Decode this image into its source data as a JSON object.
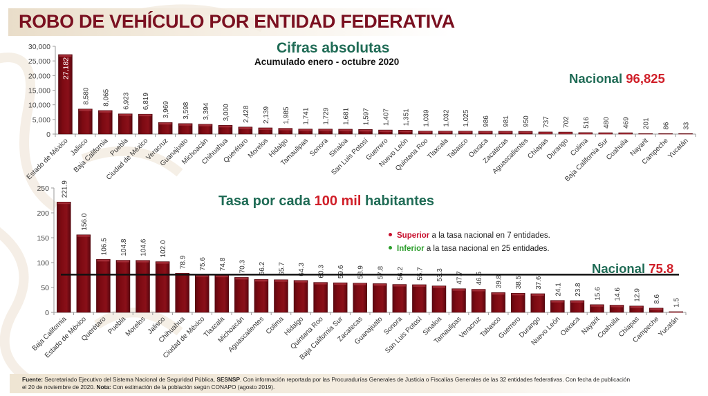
{
  "header": {
    "title": "ROBO DE VEHÍCULO POR ENTIDAD FEDERATIVA"
  },
  "panel1": {
    "subtitle": "Cifras absolutas",
    "period": "Acumulado enero - octubre 2020",
    "national_label": "Nacional",
    "national_value": "96,825"
  },
  "panel2": {
    "subtitle_pre": "Tasa por cada",
    "subtitle_highlight": "100 mil",
    "subtitle_post": "habitantes",
    "national_label": "Nacional",
    "national_value": "75.8",
    "legend": [
      {
        "bold": "Superior",
        "text": "a la tasa nacional en 7 entidades.",
        "color": "#c8102e"
      },
      {
        "bold": "Inferior",
        "text": "a la tasa nacional en 25 entidades.",
        "color": "#2a9d2a"
      }
    ]
  },
  "footer": {
    "source_label": "Fuente:",
    "source_text": "Secretariado Ejecutivo del Sistema Nacional de Seguridad Pública,",
    "source_org": "SESNSP",
    "source_text2": ". Con información reportada por las Procuradurías Generales de Justicia o Fiscalías Generales de las 32 entidades federativas. Con fecha de publicación el 20 de noviembre de 2020.",
    "note_label": "Nota:",
    "note_text": "Con estimación de la población según CONAPO (agosto 2019)."
  },
  "colors": {
    "bar": "#7d0a12",
    "title": "#7a1020",
    "accent_green": "#1f6b55",
    "accent_red": "#d01e28"
  },
  "chart_data": [
    {
      "type": "bar",
      "title": "Cifras absolutas",
      "subtitle": "Acumulado enero - octubre 2020",
      "xlabel": "",
      "ylabel": "",
      "ylim": [
        0,
        30000
      ],
      "yticks": [
        "0",
        "5,000",
        "10,000",
        "15,000",
        "20,000",
        "25,000",
        "30,000"
      ],
      "ytick_values": [
        0,
        5000,
        10000,
        15000,
        20000,
        25000,
        30000
      ],
      "categories": [
        "Estado de México",
        "Jalisco",
        "Baja California",
        "Puebla",
        "Ciudad de México",
        "Veracruz",
        "Guanajuato",
        "Michoacán",
        "Chihuahua",
        "Querétaro",
        "Morelos",
        "Hidalgo",
        "Tamaulipas",
        "Sonora",
        "Sinaloa",
        "San Luis Potosí",
        "Guerrero",
        "Nuevo León",
        "Quintana Roo",
        "Tlaxcala",
        "Tabasco",
        "Oaxaca",
        "Zacatecas",
        "Aguascalientes",
        "Chiapas",
        "Durango",
        "Colima",
        "Baja California Sur",
        "Coahuila",
        "Nayarit",
        "Campeche",
        "Yucatán"
      ],
      "values": [
        27182,
        8580,
        8065,
        6923,
        6819,
        3969,
        3598,
        3394,
        3000,
        2428,
        2139,
        1985,
        1741,
        1729,
        1681,
        1597,
        1407,
        1351,
        1039,
        1032,
        1025,
        986,
        981,
        950,
        737,
        702,
        516,
        480,
        469,
        201,
        86,
        33
      ],
      "labels": [
        "27,182",
        "8,580",
        "8,065",
        "6,923",
        "6,819",
        "3,969",
        "3,598",
        "3,394",
        "3,000",
        "2,428",
        "2,139",
        "1,985",
        "1,741",
        "1,729",
        "1,681",
        "1,597",
        "1,407",
        "1,351",
        "1,039",
        "1,032",
        "1,025",
        "986",
        "981",
        "950",
        "737",
        "702",
        "516",
        "480",
        "469",
        "201",
        "86",
        "33"
      ],
      "annotation": "Nacional 96,825",
      "grid": false
    },
    {
      "type": "bar",
      "title": "Tasa por cada 100 mil habitantes",
      "xlabel": "",
      "ylabel": "",
      "ylim": [
        0,
        250
      ],
      "yticks": [
        "0",
        "50",
        "100",
        "150",
        "200",
        "250"
      ],
      "ytick_values": [
        0,
        50,
        100,
        150,
        200,
        250
      ],
      "categories": [
        "Baja California",
        "Estado de México",
        "Querétaro",
        "Puebla",
        "Morelos",
        "Jalisco",
        "Chihuahua",
        "Ciudad de México",
        "Tlaxcala",
        "Michoacán",
        "Aguascalientes",
        "Colima",
        "Hidalgo",
        "Quintana Roo",
        "Baja California Sur",
        "Zacatecas",
        "Guanajuato",
        "Sonora",
        "San Luis Potosí",
        "Sinaloa",
        "Tamaulipas",
        "Veracruz",
        "Tabasco",
        "Guerrero",
        "Durango",
        "Nuevo León",
        "Oaxaca",
        "Nayarit",
        "Coahuila",
        "Chiapas",
        "Campeche",
        "Yucatán"
      ],
      "values": [
        221.9,
        156.0,
        106.5,
        104.8,
        104.6,
        102.0,
        78.9,
        75.6,
        74.8,
        70.3,
        66.2,
        65.7,
        64.3,
        60.3,
        59.6,
        58.9,
        57.8,
        56.2,
        55.7,
        53.3,
        47.7,
        46.5,
        39.8,
        38.5,
        37.6,
        24.1,
        23.8,
        15.6,
        14.6,
        12.9,
        8.6,
        1.5
      ],
      "labels": [
        "221.9",
        "156.0",
        "106.5",
        "104.8",
        "104.6",
        "102.0",
        "78.9",
        "75.6",
        "74.8",
        "70.3",
        "66.2",
        "65.7",
        "64.3",
        "60.3",
        "59.6",
        "58.9",
        "57.8",
        "56.2",
        "55.7",
        "53.3",
        "47.7",
        "46.5",
        "39.8",
        "38.5",
        "37.6",
        "24.1",
        "23.8",
        "15.6",
        "14.6",
        "12.9",
        "8.6",
        "1.5"
      ],
      "reference_line": {
        "label": "Nacional 75.8",
        "value": 75.8
      },
      "annotation": "Superior a la tasa nacional en 7 entidades. Inferior a la tasa nacional en 25 entidades.",
      "grid": false
    }
  ]
}
